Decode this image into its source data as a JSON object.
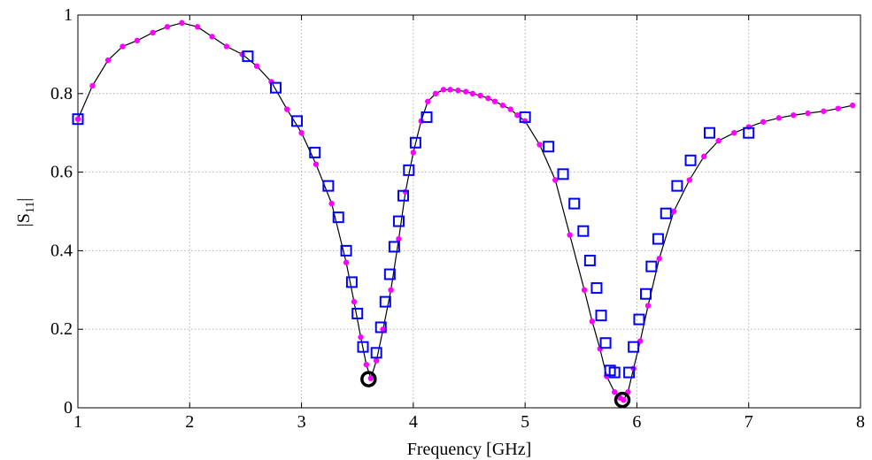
{
  "chart_data": {
    "type": "line",
    "title": "",
    "xlabel": "Frequency [GHz]",
    "ylabel_main": "|S",
    "ylabel_sub": "11",
    "ylabel_end": "|",
    "xlim": [
      1,
      8
    ],
    "ylim": [
      0,
      1
    ],
    "xticks": [
      "1",
      "2",
      "3",
      "4",
      "5",
      "6",
      "7",
      "8"
    ],
    "yticks": [
      "0",
      "0.2",
      "0.4",
      "0.6",
      "0.8",
      "1"
    ],
    "grid": true,
    "colors": {
      "line": "#000000",
      "dots": "#ff00ff",
      "squares": "#0000ff",
      "circles": "#000000"
    },
    "series": [
      {
        "style": "black-line-magenta-dots",
        "x": [
          1,
          1.13,
          1.27,
          1.4,
          1.53,
          1.67,
          1.8,
          1.93,
          2.07,
          2.2,
          2.33,
          2.47,
          2.6,
          2.73,
          2.87,
          3.0,
          3.13,
          3.27,
          3.4,
          3.47,
          3.53,
          3.58,
          3.62,
          3.67,
          3.73,
          3.8,
          3.87,
          3.93,
          4.0,
          4.07,
          4.13,
          4.2,
          4.27,
          4.33,
          4.4,
          4.47,
          4.53,
          4.6,
          4.67,
          4.73,
          4.8,
          4.87,
          4.93,
          5.0,
          5.13,
          5.27,
          5.4,
          5.53,
          5.6,
          5.67,
          5.73,
          5.8,
          5.85,
          5.88,
          5.92,
          5.97,
          6.03,
          6.1,
          6.2,
          6.33,
          6.47,
          6.6,
          6.73,
          6.87,
          7.0,
          7.13,
          7.27,
          7.4,
          7.53,
          7.67,
          7.8,
          7.93
        ],
        "y": [
          0.735,
          0.82,
          0.885,
          0.92,
          0.935,
          0.955,
          0.97,
          0.98,
          0.97,
          0.945,
          0.92,
          0.9,
          0.87,
          0.83,
          0.76,
          0.7,
          0.62,
          0.52,
          0.37,
          0.27,
          0.18,
          0.11,
          0.075,
          0.12,
          0.2,
          0.3,
          0.43,
          0.55,
          0.65,
          0.73,
          0.78,
          0.8,
          0.81,
          0.81,
          0.808,
          0.805,
          0.8,
          0.795,
          0.788,
          0.78,
          0.77,
          0.76,
          0.745,
          0.73,
          0.67,
          0.58,
          0.44,
          0.3,
          0.22,
          0.15,
          0.08,
          0.04,
          0.025,
          0.02,
          0.04,
          0.1,
          0.17,
          0.26,
          0.38,
          0.5,
          0.58,
          0.64,
          0.68,
          0.7,
          0.715,
          0.728,
          0.738,
          0.745,
          0.75,
          0.755,
          0.762,
          0.77
        ]
      },
      {
        "style": "blue-squares",
        "x": [
          1.0,
          2.52,
          2.77,
          2.96,
          3.12,
          3.24,
          3.33,
          3.4,
          3.45,
          3.5,
          3.55,
          3.67,
          3.71,
          3.75,
          3.79,
          3.83,
          3.87,
          3.91,
          3.96,
          4.02,
          4.12,
          5.0,
          5.21,
          5.34,
          5.44,
          5.52,
          5.58,
          5.64,
          5.68,
          5.72,
          5.76,
          5.8,
          5.93,
          5.97,
          6.02,
          6.08,
          6.13,
          6.19,
          6.26,
          6.36,
          6.48,
          6.65,
          7.0
        ],
        "y": [
          0.735,
          0.895,
          0.815,
          0.73,
          0.65,
          0.565,
          0.485,
          0.4,
          0.32,
          0.24,
          0.155,
          0.14,
          0.205,
          0.27,
          0.34,
          0.41,
          0.475,
          0.54,
          0.605,
          0.675,
          0.74,
          0.74,
          0.665,
          0.595,
          0.52,
          0.45,
          0.375,
          0.305,
          0.235,
          0.165,
          0.095,
          0.09,
          0.09,
          0.155,
          0.225,
          0.29,
          0.36,
          0.43,
          0.495,
          0.565,
          0.63,
          0.7,
          0.7
        ]
      },
      {
        "style": "black-circles",
        "x": [
          3.6,
          5.87
        ],
        "y": [
          0.073,
          0.02
        ]
      }
    ]
  }
}
